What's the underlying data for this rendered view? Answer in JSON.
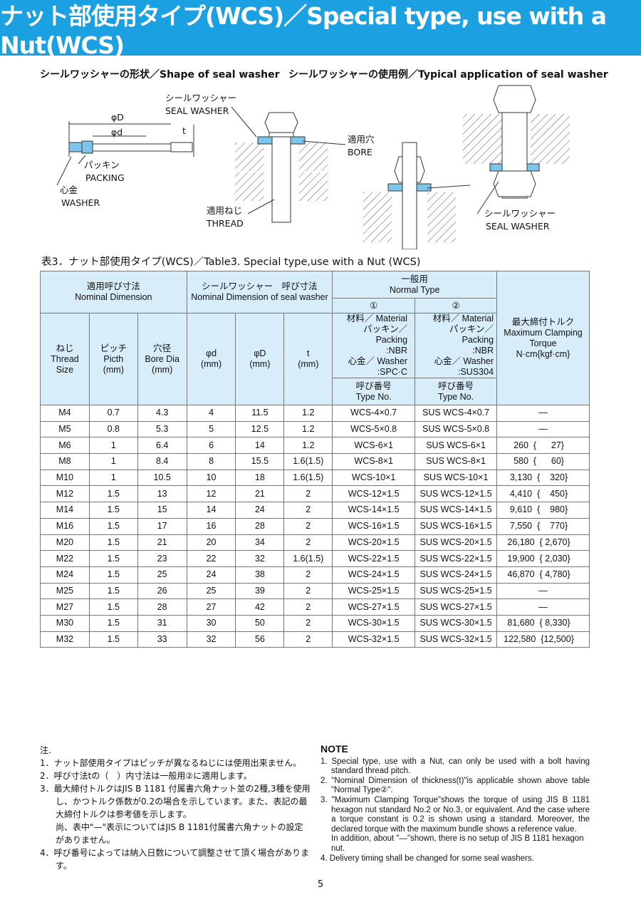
{
  "title": "ナット部使用タイプ(WCS)／Special type, use with a Nut(WCS)",
  "sections": {
    "shape": "シールワッシャーの形状／Shape of seal washer",
    "application": "シールワッシャーの使用例／Typical application of seal washer"
  },
  "diagram_labels": {
    "phiD": "φD",
    "phid": "φd",
    "t": "t",
    "packing_jp": "パッキン",
    "packing_en": "PACKING",
    "washer_jp": "心金",
    "washer_en": "WASHER",
    "seal_jp": "シールワッシャー",
    "seal_en": "SEAL  WASHER",
    "bore_jp": "適用穴",
    "bore_en": "BORE",
    "thread_jp": "適用ねじ",
    "thread_en": "THREAD",
    "seal2_jp": "シールワッシャー",
    "seal2_en": "SEAL  WASHER"
  },
  "table_caption": "表3．ナット部使用タイプ(WCS)／Table3.  Special type,use with a Nut (WCS)",
  "table": {
    "h_nominal": [
      "適用呼び寸法",
      "Nominal Dimension"
    ],
    "h_seal": [
      "シールワッシャー　呼び寸法",
      "Nominal Dimension of seal washer"
    ],
    "h_normal": [
      "一般用",
      "Normal Type"
    ],
    "h_type1": "①",
    "h_type2": "②",
    "h_torque": [
      "最大締付トルク",
      "Maximum Clamping",
      "Torque",
      "N·cm{kgf·cm}"
    ],
    "h_thread": [
      "ねじ",
      "Thread",
      "Size"
    ],
    "h_pitch": [
      "ピッチ",
      "Picth",
      "(mm)"
    ],
    "h_bore": [
      "穴径",
      "Bore Dia",
      "(mm)"
    ],
    "h_d": [
      "φd",
      "(mm)"
    ],
    "h_D": [
      "φD",
      "(mm)"
    ],
    "h_t": [
      "t",
      "(mm)"
    ],
    "h_mat1": [
      "材料／ Material",
      "パッキン／ Packing",
      ":NBR",
      "心金／ Washer",
      ":SPC·C"
    ],
    "h_mat2": [
      "材料／ Material",
      "パッキン／ Packing",
      ":NBR",
      "心金／ Washer",
      ":SUS304"
    ],
    "h_typeno": [
      "呼び番号",
      "Type No."
    ],
    "rows": [
      [
        "M4",
        "0.7",
        "4.3",
        "4",
        "11.5",
        "1.2",
        "WCS-4×0.7",
        "SUS WCS-4×0.7",
        "—"
      ],
      [
        "M5",
        "0.8",
        "5.3",
        "5",
        "12.5",
        "1.2",
        "WCS-5×0.8",
        "SUS WCS-5×0.8",
        "—"
      ],
      [
        "M6",
        "1",
        "6.4",
        "6",
        "14",
        "1.2",
        "WCS-6×1",
        "SUS WCS-6×1",
        "260  {      27}"
      ],
      [
        "M8",
        "1",
        "8.4",
        "8",
        "15.5",
        "1.6(1.5)",
        "WCS-8×1",
        "SUS WCS-8×1",
        "580  {      60}"
      ],
      [
        "M10",
        "1",
        "10.5",
        "10",
        "18",
        "1.6(1.5)",
        "WCS-10×1",
        "SUS WCS-10×1",
        "3,130  {    320}"
      ],
      [
        "M12",
        "1.5",
        "13",
        "12",
        "21",
        "2",
        "WCS-12×1.5",
        "SUS WCS-12×1.5",
        "4,410  {    450}"
      ],
      [
        "M14",
        "1.5",
        "15",
        "14",
        "24",
        "2",
        "WCS-14×1.5",
        "SUS WCS-14×1.5",
        "9,610  {    980}"
      ],
      [
        "M16",
        "1.5",
        "17",
        "16",
        "28",
        "2",
        "WCS-16×1.5",
        "SUS WCS-16×1.5",
        "7,550  {    770}"
      ],
      [
        "M20",
        "1.5",
        "21",
        "20",
        "34",
        "2",
        "WCS-20×1.5",
        "SUS WCS-20×1.5",
        "26,180  { 2,670}"
      ],
      [
        "M22",
        "1.5",
        "23",
        "22",
        "32",
        "1.6(1.5)",
        "WCS-22×1.5",
        "SUS WCS-22×1.5",
        "19,900  { 2,030}"
      ],
      [
        "M24",
        "1.5",
        "25",
        "24",
        "38",
        "2",
        "WCS-24×1.5",
        "SUS WCS-24×1.5",
        "46,870  { 4,780}"
      ],
      [
        "M25",
        "1.5",
        "26",
        "25",
        "39",
        "2",
        "WCS-25×1.5",
        "SUS WCS-25×1.5",
        "—"
      ],
      [
        "M27",
        "1.5",
        "28",
        "27",
        "42",
        "2",
        "WCS-27×1.5",
        "SUS WCS-27×1.5",
        "—"
      ],
      [
        "M30",
        "1.5",
        "31",
        "30",
        "50",
        "2",
        "WCS-30×1.5",
        "SUS WCS-30×1.5",
        "81,680  { 8,330}"
      ],
      [
        "M32",
        "1.5",
        "33",
        "32",
        "56",
        "2",
        "WCS-32×1.5",
        "SUS WCS-32×1.5",
        "122,580  {12,500}"
      ]
    ]
  },
  "notes_jp": {
    "heading": "注.",
    "items": [
      "1．ナット部使用タイプはピッチが異なるねじには使用出来ません。",
      "2．呼び寸法tの（　）内寸法は一般用②に適用します。",
      "3．最大締付トルクはJIS B 1181 付属書六角ナット並の2種,3種を使用し、かつトルク係数が0.2の場合を示しています。また、表記の最大締付トルクは参考値を示します。",
      "4．呼び番号によっては納入日数について調整させて頂く場合があります。"
    ],
    "item3_extra": "尚、表中\"—\"表示についてはJIS B 1181付属書六角ナットの設定がありません。"
  },
  "notes_en": {
    "heading": "NOTE",
    "items": [
      "1. Special type, use with a Nut, can only be used with a bolt having standard thread pitch.",
      "2. \"Nominal Dimension of thickness(t)\"is applicable shown above table \"Normal Type②\".",
      "3. \"Maximum Clamping Torque\"shows the torque of using JIS B 1181 hexagon nut standard No.2 or No.3, or equivalent. And the case where a torque constant is 0.2 is shown using a standard. Moreover, the declared torque with the maximum bundle shows a reference value.",
      "4. Delivery timing shall be changed for some seal washers."
    ],
    "item3_extra": "In addition, about \"—\"shown, there is no setup of JIS B 1181 hexagon nut."
  },
  "page_number": "5",
  "colors": {
    "title_bar": "#1ba1e2",
    "table_header": "#d7eefa",
    "washer_fill": "#7cc6ee"
  }
}
